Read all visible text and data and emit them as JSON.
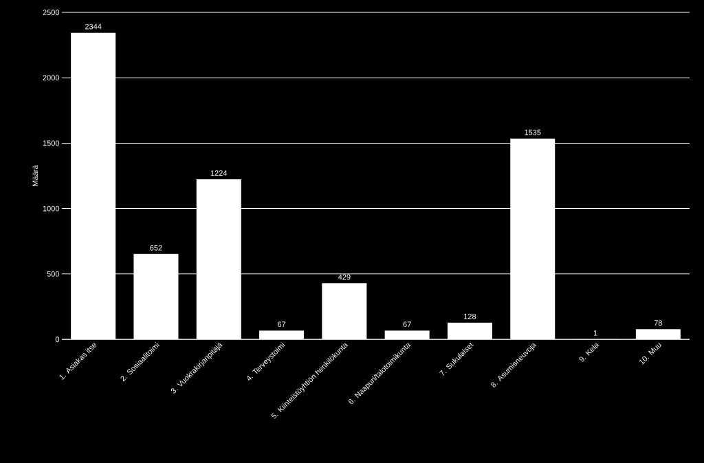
{
  "chart_data": {
    "type": "bar",
    "ylabel": "Määrä",
    "categories": [
      "1. Asiakas itse",
      "2. Sosiaalitoimi",
      "3. Vuokrakirjanpitäjä",
      "4. Terveystoimi",
      "5. Kiinteistöyhtiön henkilökunta",
      "6. Naapuri/talotoimikunta",
      "7. Sukulaiset",
      "8. Asumisneuvoja",
      "9. Kela",
      "10. Muu"
    ],
    "values": [
      2344,
      652,
      1224,
      67,
      429,
      67,
      128,
      1535,
      1,
      78
    ],
    "color": "#ffffff",
    "ylim": [
      0,
      2500
    ],
    "yticks": [
      0,
      500,
      1000,
      1500,
      2000,
      2500
    ],
    "grid": "y",
    "data_labels": true
  }
}
